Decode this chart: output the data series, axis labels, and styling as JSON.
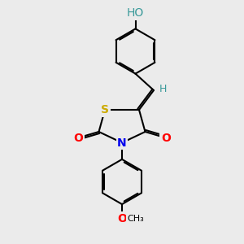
{
  "bg_color": "#ebebeb",
  "atom_colors": {
    "C": "#000000",
    "H": "#3a9a9a",
    "O": "#ff0000",
    "N": "#0000ee",
    "S": "#ccaa00"
  },
  "bond_color": "#000000",
  "bond_width": 1.5,
  "font_size_atom": 10,
  "font_size_H": 9,
  "figsize": [
    3.0,
    3.0
  ],
  "dpi": 100,
  "xlim": [
    0,
    10
  ],
  "ylim": [
    0,
    10
  ]
}
